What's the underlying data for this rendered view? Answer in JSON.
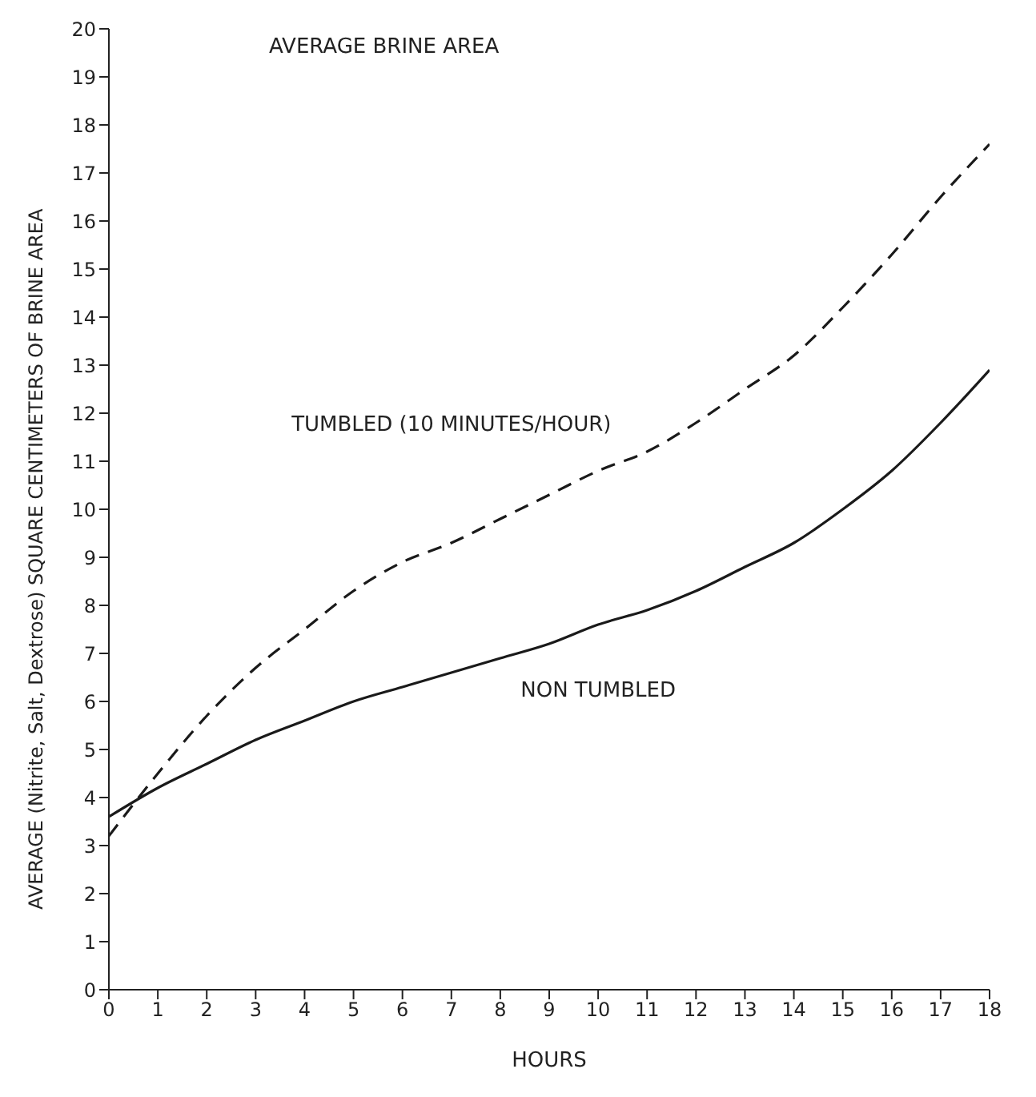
{
  "chart_data": {
    "type": "line",
    "title": "AVERAGE BRINE AREA",
    "xlabel": "HOURS",
    "ylabel": "AVERAGE (Nitrite, Salt, Dextrose) SQUARE CENTIMETERS OF BRINE AREA",
    "x": [
      0,
      1,
      2,
      3,
      4,
      5,
      6,
      7,
      8,
      9,
      10,
      11,
      12,
      13,
      14,
      15,
      16,
      17,
      18
    ],
    "series": [
      {
        "name": "TUMBLED (10 MINUTES/HOUR)",
        "color": "#1a1a1a",
        "line_style": "dashed",
        "values": [
          3.2,
          4.5,
          5.7,
          6.7,
          7.5,
          8.3,
          8.9,
          9.3,
          9.8,
          10.3,
          10.8,
          11.2,
          11.8,
          12.5,
          13.2,
          14.2,
          15.3,
          16.5,
          17.6
        ]
      },
      {
        "name": "NON TUMBLED",
        "color": "#1a1a1a",
        "line_style": "solid",
        "values": [
          3.6,
          4.2,
          4.7,
          5.2,
          5.6,
          6.0,
          6.3,
          6.6,
          6.9,
          7.2,
          7.6,
          7.9,
          8.3,
          8.8,
          9.3,
          10.0,
          10.8,
          11.8,
          12.9
        ]
      }
    ],
    "xlim": [
      0,
      18
    ],
    "xticks": [
      0,
      1,
      2,
      3,
      4,
      5,
      6,
      7,
      8,
      9,
      10,
      11,
      12,
      13,
      14,
      15,
      16,
      17,
      18
    ],
    "ylim": [
      0,
      20
    ],
    "yticks": [
      0,
      1,
      2,
      3,
      4,
      5,
      6,
      7,
      8,
      9,
      10,
      11,
      12,
      13,
      14,
      15,
      16,
      17,
      18,
      19,
      20
    ],
    "grid": false,
    "legend": false,
    "marker": "none"
  }
}
